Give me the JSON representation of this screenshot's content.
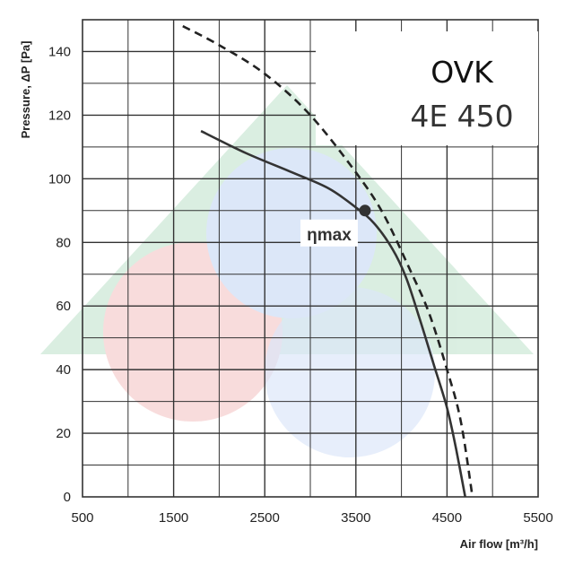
{
  "chart_data": {
    "type": "line",
    "title": "OVK",
    "subtitle": "4E 450",
    "xlabel": "Air flow [m³/h]",
    "ylabel": "Pressure, ΔP [Pa]",
    "xlim": [
      500,
      5500
    ],
    "ylim": [
      0,
      150
    ],
    "xticks": [
      500,
      1500,
      2500,
      3500,
      4500,
      5500
    ],
    "xtick_labels": [
      "500",
      "1500",
      "2500",
      "3500",
      "4500",
      "5500"
    ],
    "yticks": [
      0,
      20,
      40,
      60,
      80,
      100,
      120,
      140
    ],
    "ytick_labels": [
      "0",
      "20",
      "40",
      "60",
      "80",
      "100",
      "120",
      "140"
    ],
    "grid": true,
    "series": [
      {
        "style": "solid",
        "color": "#333333",
        "x": [
          1800,
          2300,
          2800,
          3200,
          3500,
          3700,
          3900,
          4050,
          4200,
          4350,
          4500,
          4600,
          4700
        ],
        "y": [
          115,
          108,
          102,
          97,
          91,
          86,
          78,
          69,
          56,
          42,
          28,
          15,
          0
        ]
      },
      {
        "style": "dashed",
        "color": "#222222",
        "x": [
          1600,
          2000,
          2500,
          3000,
          3500,
          3800,
          4100,
          4300,
          4500,
          4650,
          4780
        ],
        "y": [
          148,
          142,
          133,
          120,
          102,
          89,
          71,
          58,
          40,
          24,
          0
        ]
      }
    ],
    "annotations": [
      {
        "text": "ηmax",
        "x": 3600,
        "y": 90
      }
    ],
    "watermark": "green, red and blue triangle logo"
  }
}
